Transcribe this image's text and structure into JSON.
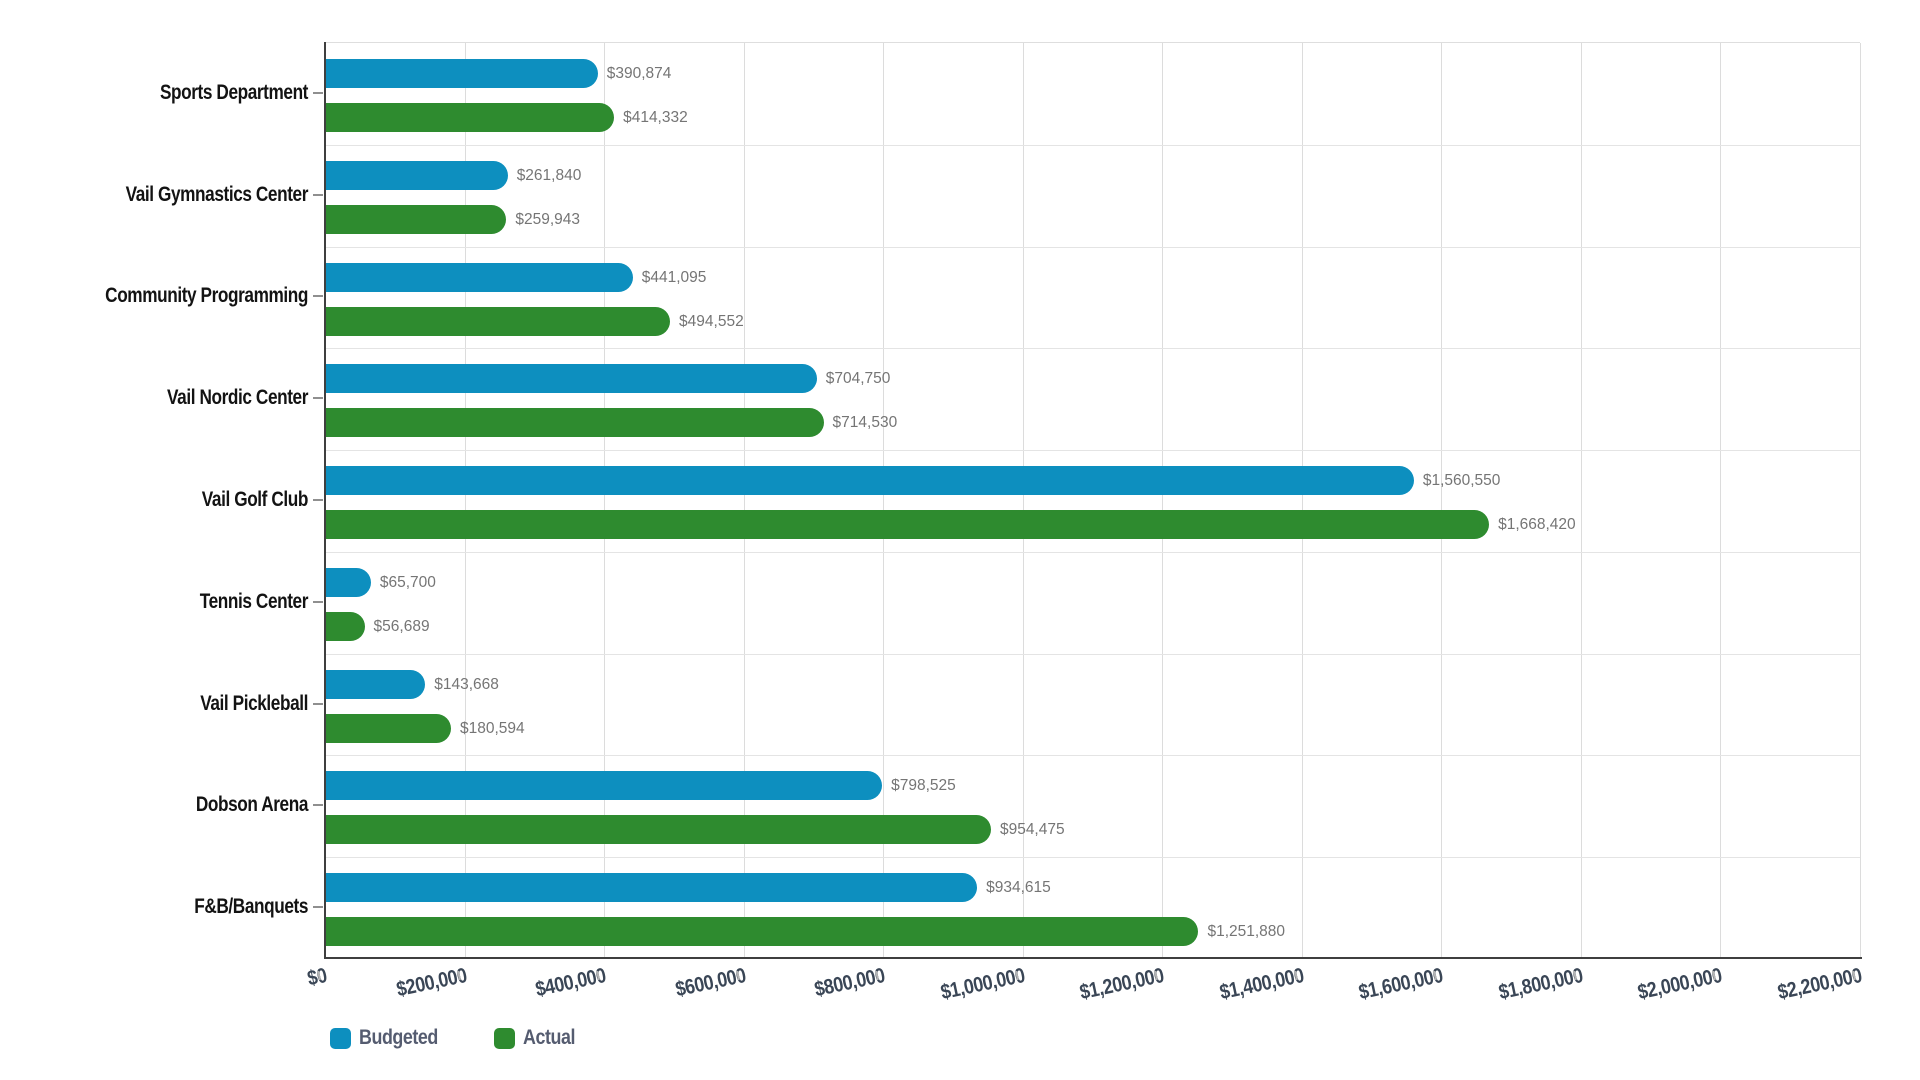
{
  "chart_data": {
    "type": "bar",
    "orientation": "horizontal",
    "title": "",
    "categories": [
      "Sports Department",
      "Vail Gymnastics Center",
      "Community Programming",
      "Vail Nordic Center",
      "Vail Golf Club",
      "Tennis Center",
      "Vail Pickleball",
      "Dobson Arena",
      "F&B/Banquets"
    ],
    "series": [
      {
        "name": "Budgeted",
        "color": "#0D8FBF",
        "values": [
          390874,
          261840,
          441095,
          704750,
          1560550,
          65700,
          143668,
          798525,
          934615
        ]
      },
      {
        "name": "Actual",
        "color": "#2E8B2F",
        "values": [
          414332,
          259943,
          494552,
          714530,
          1668420,
          56689,
          180594,
          954475,
          1251880
        ]
      }
    ],
    "value_labels": {
      "Budgeted": [
        "$390,874",
        "$261,840",
        "$441,095",
        "$704,750",
        "$1,560,550",
        "$65,700",
        "$143,668",
        "$798,525",
        "$934,615"
      ],
      "Actual": [
        "$414,332",
        "$259,943",
        "$494,552",
        "$714,530",
        "$1,668,420",
        "$56,689",
        "$180,594",
        "$954,475",
        "$1,251,880"
      ]
    },
    "x_ticks": [
      "$0",
      "$200,000",
      "$400,000",
      "$600,000",
      "$800,000",
      "$1,000,000",
      "$1,200,000",
      "$1,400,000",
      "$1,600,000",
      "$1,800,000",
      "$2,000,000",
      "$2,200,000"
    ],
    "xlim": [
      0,
      2200000
    ],
    "grid": "vertical",
    "legend_position": "bottom-left",
    "colors": {
      "value_label": "#757575",
      "tick_label": "#3A4656",
      "category_label": "#131313",
      "legend_label": "#555C70",
      "gridline": "#DCDCDC",
      "axis_line": "#3F3F3F"
    }
  }
}
